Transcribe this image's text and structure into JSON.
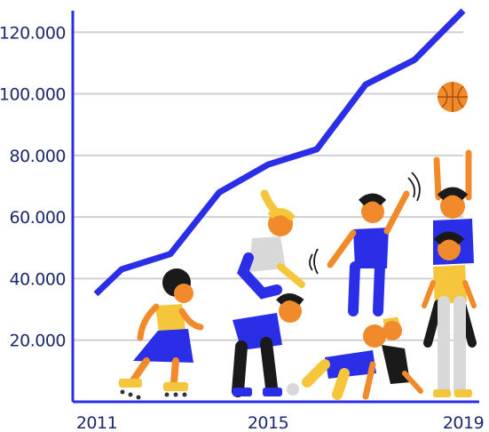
{
  "chart_data": {
    "type": "line",
    "title": "",
    "xlabel": "",
    "ylabel": "",
    "x": [
      2011,
      2012,
      2013,
      2014,
      2015,
      2016,
      2017,
      2018,
      2019
    ],
    "x_tick_labels": [
      "2011",
      "2015",
      "2019"
    ],
    "x_tick_values": [
      2011,
      2015,
      2019
    ],
    "y_tick_labels": [
      "20.000",
      "40.000",
      "60.000",
      "80.000",
      "100.000",
      "120.000"
    ],
    "y_tick_values": [
      20000,
      40000,
      60000,
      80000,
      100000,
      120000
    ],
    "series": [
      {
        "values": [
          35000,
          43000,
          48000,
          68000,
          77000,
          82000,
          103000,
          111000,
          127000
        ]
      }
    ],
    "xlim": [
      2011,
      2019
    ],
    "ylim": [
      0,
      127000
    ],
    "grid": true,
    "legend": "none",
    "colors": {
      "line": "#2a2ee6",
      "grid": "#d0d0d0",
      "axis": "#2a2ee6",
      "tick_text": "#1b2a6b"
    }
  },
  "illustration": {
    "figures": [
      "roller-skating-child",
      "children-pyramid",
      "jumping-child",
      "crawling-children",
      "child-reaching-for-ball",
      "basketball"
    ]
  }
}
